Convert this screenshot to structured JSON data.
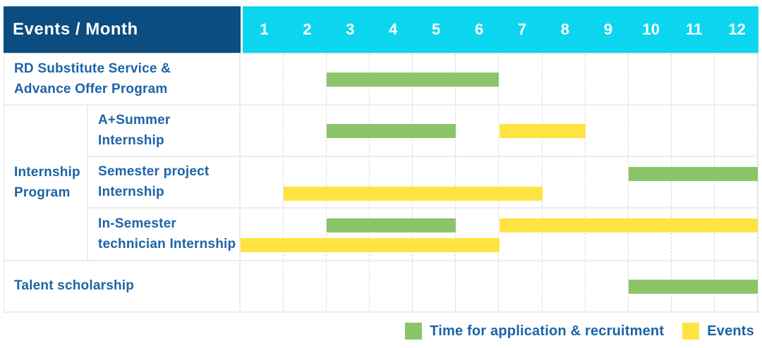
{
  "colors": {
    "navy_header": "#0B4D80",
    "cyan_header": "#0CD6EF",
    "header_text": "#FFFFFF",
    "label_blue": "#1E63A8",
    "grid_line": "#D9D9D9",
    "application": "#8BC56A",
    "event": "#FFE441"
  },
  "chart_data": {
    "type": "gantt",
    "title": "Events / Month",
    "x": {
      "unit": "month",
      "range": [
        1,
        12
      ],
      "ticks": [
        "1",
        "2",
        "3",
        "4",
        "5",
        "6",
        "7",
        "8",
        "9",
        "10",
        "11",
        "12"
      ]
    },
    "groups": [
      {
        "group": null,
        "rows": [
          {
            "label": "RD Substitute Service & Advance Offer Program",
            "label_lines": [
              "RD Substitute Service &",
              "Advance Offer Program"
            ],
            "lines": [
              [
                {
                  "kind": "application",
                  "start": 3,
                  "end": 6
                }
              ]
            ]
          }
        ]
      },
      {
        "group": "Internship Program",
        "group_lines": [
          "Internship",
          "Program"
        ],
        "rows": [
          {
            "label": "A+Summer Internship",
            "label_lines": [
              "A+Summer",
              "Internship"
            ],
            "lines": [
              [
                {
                  "kind": "application",
                  "start": 3,
                  "end": 5
                },
                {
                  "kind": "event",
                  "start": 7,
                  "end": 8
                }
              ]
            ]
          },
          {
            "label": "Semester project Internship",
            "label_lines": [
              "Semester project",
              "Internship"
            ],
            "lines": [
              [
                {
                  "kind": "application",
                  "start": 10,
                  "end": 12
                }
              ],
              [
                {
                  "kind": "event",
                  "start": 2,
                  "end": 7
                }
              ]
            ]
          },
          {
            "label": "In-Semester technician Internship",
            "label_lines": [
              "In-Semester",
              "technician Internship"
            ],
            "lines": [
              [
                {
                  "kind": "application",
                  "start": 3,
                  "end": 5
                },
                {
                  "kind": "event",
                  "start": 7,
                  "end": 12
                }
              ],
              [
                {
                  "kind": "event",
                  "start": 1,
                  "end": 6
                }
              ]
            ]
          }
        ]
      },
      {
        "group": null,
        "rows": [
          {
            "label": "Talent scholarship",
            "label_lines": [
              "Talent scholarship"
            ],
            "lines": [
              [
                {
                  "kind": "application",
                  "start": 10,
                  "end": 12
                }
              ]
            ]
          }
        ]
      }
    ],
    "legend": [
      {
        "kind": "application",
        "label": "Time for application & recruitment"
      },
      {
        "kind": "event",
        "label": "Events"
      }
    ],
    "legend_position": "bottom-right",
    "grid": "vertical-dashed"
  }
}
